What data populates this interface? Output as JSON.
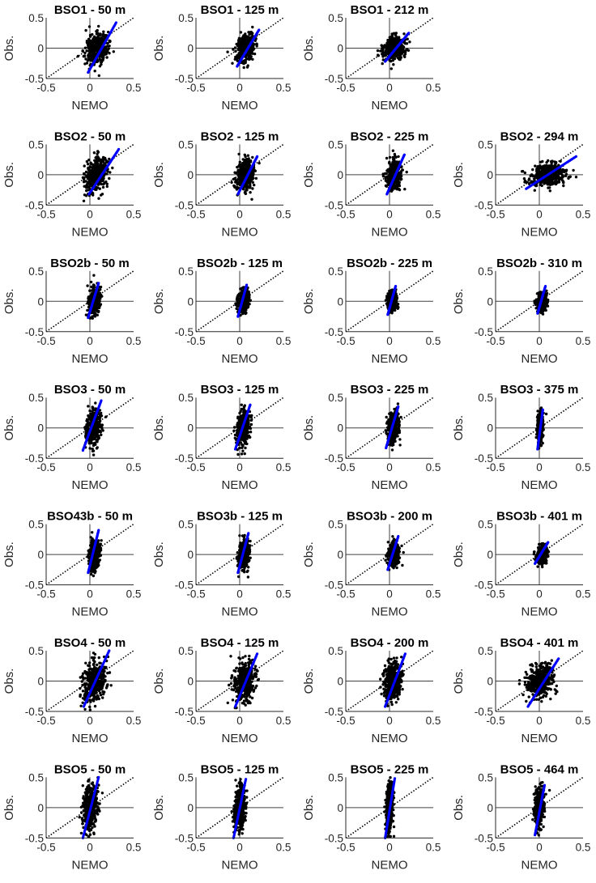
{
  "chart_data": {
    "type": "scatter",
    "layout_grid": {
      "rows": 7,
      "cols": 4
    },
    "colors": {
      "points": "#000000",
      "quantile_fit": "#0000ff",
      "one_to_one": "#000000",
      "axes": "#262626"
    },
    "shared": {
      "xlabel": "NEMO",
      "ylabel": "Obs.",
      "xlim": [
        -0.5,
        0.5
      ],
      "ylim": [
        -0.5,
        0.5
      ],
      "xticks": [
        -0.5,
        0,
        0.5
      ],
      "xtick_labels": [
        "-0.5",
        "0",
        "0.5"
      ],
      "yticks": [
        -0.5,
        0,
        0.5
      ],
      "ytick_labels": [
        "-0.5",
        "0",
        "0.5"
      ],
      "one_to_one_line": true,
      "zero_lines": true,
      "grid": false
    },
    "panels": [
      {
        "title": "BSO1 - 50 m",
        "cloud": {
          "x_center": 0.08,
          "x_sd": 0.06,
          "y_sd": 0.13
        },
        "fit": [
          [
            -0.02,
            -0.4
          ],
          [
            0.3,
            0.42
          ]
        ]
      },
      {
        "title": "BSO1 - 125 m",
        "cloud": {
          "x_center": 0.07,
          "x_sd": 0.05,
          "y_sd": 0.11
        },
        "fit": [
          [
            -0.03,
            -0.3
          ],
          [
            0.22,
            0.3
          ]
        ]
      },
      {
        "title": "BSO1 - 212 m",
        "cloud": {
          "x_center": 0.06,
          "x_sd": 0.06,
          "y_sd": 0.09
        },
        "fit": [
          [
            -0.05,
            -0.22
          ],
          [
            0.22,
            0.25
          ]
        ]
      },
      null,
      {
        "title": "BSO2 - 50 m",
        "cloud": {
          "x_center": 0.07,
          "x_sd": 0.06,
          "y_sd": 0.13
        },
        "fit": [
          [
            -0.01,
            -0.32
          ],
          [
            0.33,
            0.42
          ]
        ]
      },
      {
        "title": "BSO2 - 125 m",
        "cloud": {
          "x_center": 0.07,
          "x_sd": 0.05,
          "y_sd": 0.12
        },
        "fit": [
          [
            -0.02,
            -0.32
          ],
          [
            0.2,
            0.3
          ]
        ]
      },
      {
        "title": "BSO2 - 225 m",
        "cloud": {
          "x_center": 0.05,
          "x_sd": 0.04,
          "y_sd": 0.12
        },
        "fit": [
          [
            -0.03,
            -0.32
          ],
          [
            0.17,
            0.33
          ]
        ]
      },
      {
        "title": "BSO2 - 294 m",
        "cloud": {
          "x_center": 0.1,
          "x_sd": 0.1,
          "y_sd": 0.09
        },
        "fit": [
          [
            -0.15,
            -0.23
          ],
          [
            0.42,
            0.3
          ]
        ]
      },
      {
        "title": "BSO2b - 50 m",
        "cloud": {
          "x_center": 0.05,
          "x_sd": 0.03,
          "y_sd": 0.1
        },
        "fit": [
          [
            -0.02,
            -0.27
          ],
          [
            0.1,
            0.3
          ]
        ]
      },
      {
        "title": "BSO2b - 125 m",
        "cloud": {
          "x_center": 0.04,
          "x_sd": 0.03,
          "y_sd": 0.09
        },
        "fit": [
          [
            -0.02,
            -0.25
          ],
          [
            0.08,
            0.27
          ]
        ]
      },
      {
        "title": "BSO2b - 225 m",
        "cloud": {
          "x_center": 0.03,
          "x_sd": 0.025,
          "y_sd": 0.08
        },
        "fit": [
          [
            -0.02,
            -0.22
          ],
          [
            0.07,
            0.25
          ]
        ]
      },
      {
        "title": "BSO2b - 310 m",
        "cloud": {
          "x_center": 0.03,
          "x_sd": 0.025,
          "y_sd": 0.07
        },
        "fit": [
          [
            -0.02,
            -0.2
          ],
          [
            0.07,
            0.25
          ]
        ]
      },
      {
        "title": "BSO3 - 50 m",
        "cloud": {
          "x_center": 0.04,
          "x_sd": 0.04,
          "y_sd": 0.15
        },
        "fit": [
          [
            -0.08,
            -0.37
          ],
          [
            0.13,
            0.45
          ]
        ]
      },
      {
        "title": "BSO3 - 125 m",
        "cloud": {
          "x_center": 0.04,
          "x_sd": 0.035,
          "y_sd": 0.14
        },
        "fit": [
          [
            -0.05,
            -0.35
          ],
          [
            0.12,
            0.38
          ]
        ]
      },
      {
        "title": "BSO3 - 225 m",
        "cloud": {
          "x_center": 0.04,
          "x_sd": 0.03,
          "y_sd": 0.12
        },
        "fit": [
          [
            -0.04,
            -0.33
          ],
          [
            0.1,
            0.35
          ]
        ]
      },
      {
        "title": "BSO3 - 375 m",
        "cloud": {
          "x_center": 0.01,
          "x_sd": 0.015,
          "y_sd": 0.12
        },
        "fit": [
          [
            -0.02,
            -0.35
          ],
          [
            0.04,
            0.3
          ]
        ]
      },
      {
        "title": "BSO43b - 50 m",
        "cloud": {
          "x_center": 0.05,
          "x_sd": 0.03,
          "y_sd": 0.12
        },
        "fit": [
          [
            -0.02,
            -0.3
          ],
          [
            0.1,
            0.4
          ]
        ]
      },
      {
        "title": "BSO3b - 125 m",
        "cloud": {
          "x_center": 0.05,
          "x_sd": 0.03,
          "y_sd": 0.11
        },
        "fit": [
          [
            -0.02,
            -0.3
          ],
          [
            0.1,
            0.35
          ]
        ]
      },
      {
        "title": "BSO3b - 200 m",
        "cloud": {
          "x_center": 0.05,
          "x_sd": 0.03,
          "y_sd": 0.09
        },
        "fit": [
          [
            -0.02,
            -0.25
          ],
          [
            0.1,
            0.3
          ]
        ]
      },
      {
        "title": "BSO3b - 401 m",
        "cloud": {
          "x_center": 0.03,
          "x_sd": 0.03,
          "y_sd": 0.07
        },
        "fit": [
          [
            -0.05,
            -0.15
          ],
          [
            0.1,
            0.2
          ]
        ]
      },
      {
        "title": "BSO4 - 50 m",
        "cloud": {
          "x_center": 0.05,
          "x_sd": 0.06,
          "y_sd": 0.17
        },
        "fit": [
          [
            -0.07,
            -0.42
          ],
          [
            0.22,
            0.5
          ]
        ]
      },
      {
        "title": "BSO4 - 125 m",
        "cloud": {
          "x_center": 0.05,
          "x_sd": 0.06,
          "y_sd": 0.16
        },
        "fit": [
          [
            -0.05,
            -0.42
          ],
          [
            0.2,
            0.45
          ]
        ]
      },
      {
        "title": "BSO4 - 200 m",
        "cloud": {
          "x_center": 0.04,
          "x_sd": 0.05,
          "y_sd": 0.16
        },
        "fit": [
          [
            -0.05,
            -0.42
          ],
          [
            0.18,
            0.45
          ]
        ]
      },
      {
        "title": "BSO4 - 401 m",
        "cloud": {
          "x_center": 0.01,
          "x_sd": 0.07,
          "y_sd": 0.14
        },
        "fit": [
          [
            -0.13,
            -0.42
          ],
          [
            0.22,
            0.37
          ]
        ]
      },
      {
        "title": "BSO5 - 50 m",
        "cloud": {
          "x_center": 0.0,
          "x_sd": 0.04,
          "y_sd": 0.2
        },
        "fit": [
          [
            -0.08,
            -0.5
          ],
          [
            0.1,
            0.5
          ]
        ]
      },
      {
        "title": "BSO5 - 125 m",
        "cloud": {
          "x_center": 0.0,
          "x_sd": 0.03,
          "y_sd": 0.19
        },
        "fit": [
          [
            -0.07,
            -0.5
          ],
          [
            0.07,
            0.47
          ]
        ]
      },
      {
        "title": "BSO5 - 225 m",
        "cloud": {
          "x_center": 0.0,
          "x_sd": 0.02,
          "y_sd": 0.2
        },
        "fit": [
          [
            -0.05,
            -0.5
          ],
          [
            0.06,
            0.48
          ]
        ]
      },
      {
        "title": "BSO5 - 464 m",
        "cloud": {
          "x_center": 0.0,
          "x_sd": 0.025,
          "y_sd": 0.15
        },
        "fit": [
          [
            -0.05,
            -0.45
          ],
          [
            0.06,
            0.37
          ]
        ]
      }
    ]
  }
}
